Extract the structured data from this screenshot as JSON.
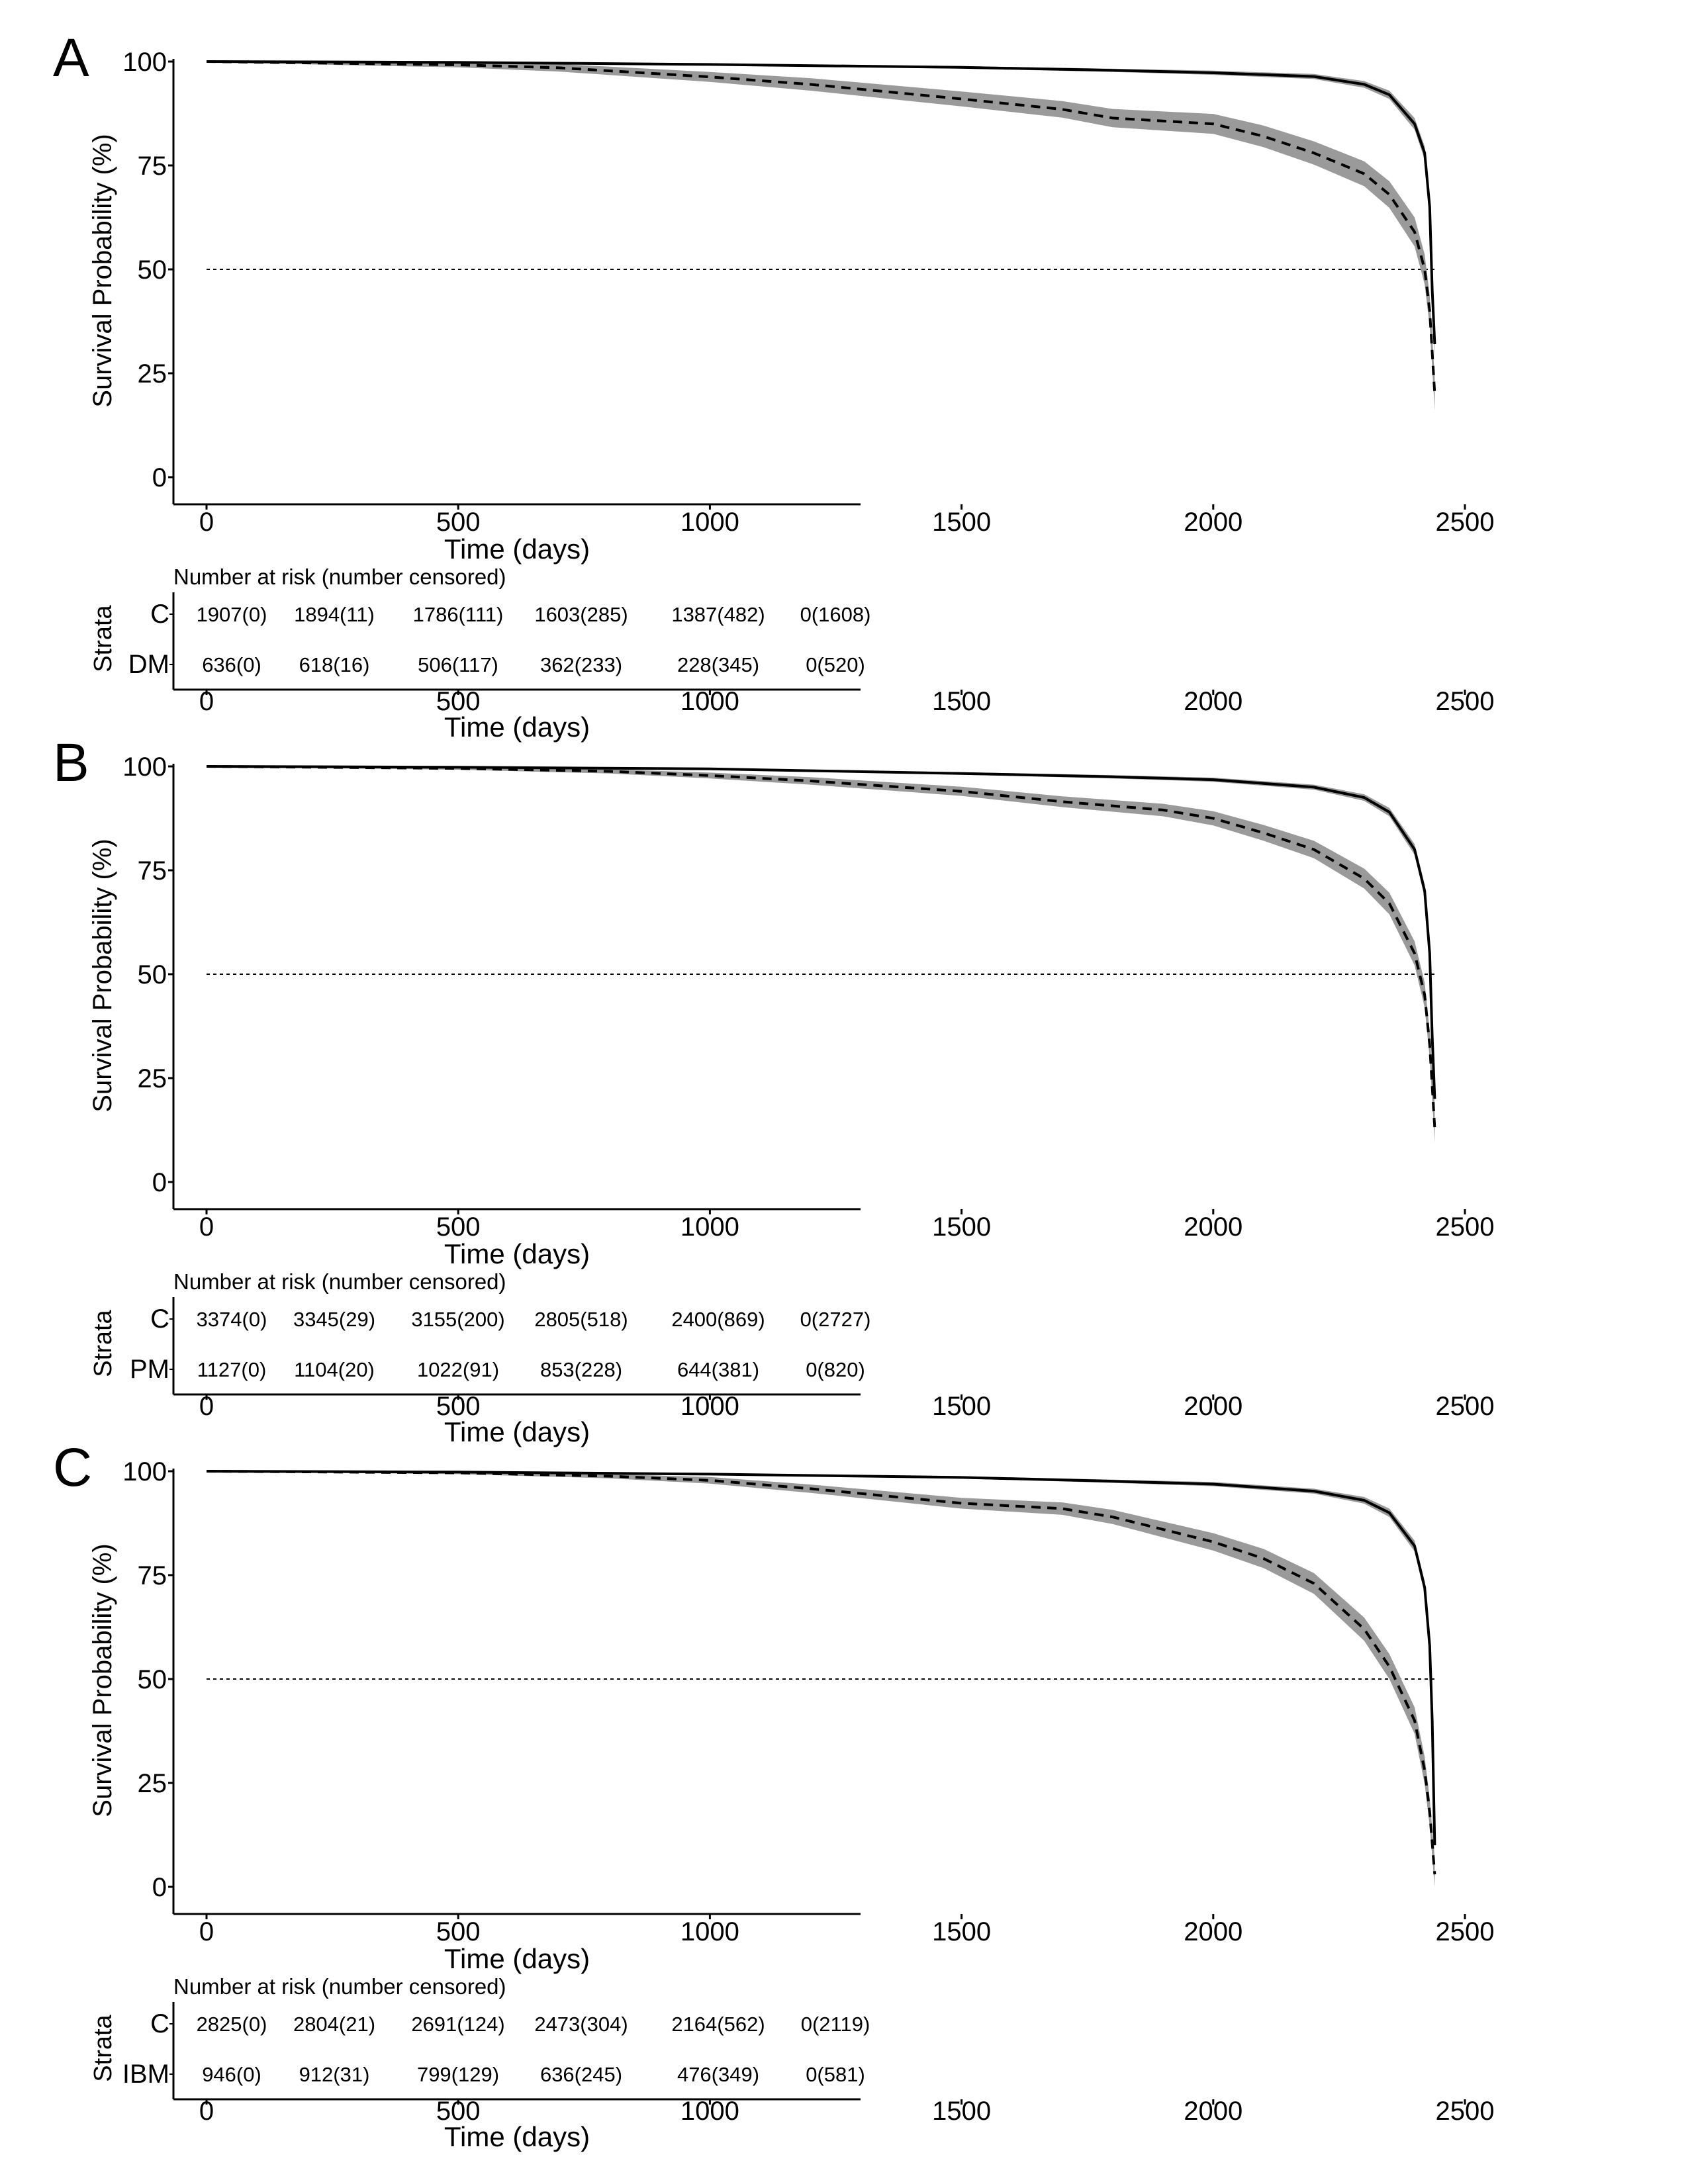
{
  "figure": {
    "panels": [
      {
        "letter": "A",
        "risk_table_title": "Number at risk (number censored)",
        "strata_label": "Strata",
        "strata": [
          "C",
          "DM"
        ],
        "risk_rows": [
          [
            "1907(0)",
            "1894(11)",
            "1786(111)",
            "1603(285)",
            "1387(482)",
            "0(1608)"
          ],
          [
            "636(0)",
            "618(16)",
            "506(117)",
            "362(233)",
            "228(345)",
            "0(520)"
          ]
        ]
      },
      {
        "letter": "B",
        "risk_table_title": "Number at risk (number censored)",
        "strata_label": "Strata",
        "strata": [
          "C",
          "PM"
        ],
        "risk_rows": [
          [
            "3374(0)",
            "3345(29)",
            "3155(200)",
            "2805(518)",
            "2400(869)",
            "0(2727)"
          ],
          [
            "1127(0)",
            "1104(20)",
            "1022(91)",
            "853(228)",
            "644(381)",
            "0(820)"
          ]
        ]
      },
      {
        "letter": "C",
        "risk_table_title": "Number at risk (number censored)",
        "strata_label": "Strata",
        "strata": [
          "C",
          "IBM"
        ],
        "risk_rows": [
          [
            "2825(0)",
            "2804(21)",
            "2691(124)",
            "2473(304)",
            "2164(562)",
            "0(2119)"
          ],
          [
            "946(0)",
            "912(31)",
            "799(129)",
            "636(245)",
            "476(349)",
            "0(581)"
          ]
        ]
      }
    ]
  },
  "chart_data": [
    {
      "type": "line",
      "title": "",
      "xlabel": "Time (days)",
      "ylabel": "Survival Probability (%)",
      "xlim": [
        -120,
        2600
      ],
      "ylim": [
        -5,
        105
      ],
      "xticks": [
        0,
        500,
        1000,
        1500,
        2000,
        2500
      ],
      "yticks": [
        0,
        25,
        50,
        75,
        100
      ],
      "reference_line_y": 50,
      "series": [
        {
          "style": "solid",
          "color": "#000000",
          "ci_color": "#9a9a9a",
          "x": [
            0,
            500,
            1000,
            1500,
            1800,
            2000,
            2200,
            2300,
            2350,
            2400,
            2420,
            2430,
            2435,
            2440
          ],
          "y": [
            100,
            99.8,
            99.3,
            98.6,
            97.9,
            97.3,
            96.4,
            94.5,
            92.0,
            85.0,
            78.0,
            65.0,
            45.0,
            32.0
          ],
          "ci_half": [
            0.1,
            0.15,
            0.2,
            0.3,
            0.4,
            0.5,
            0.6,
            0.8,
            1.0,
            1.4,
            1.6,
            2.0,
            2.5,
            3.0
          ]
        },
        {
          "style": "dashed",
          "color": "#000000",
          "ci_color": "#9a9a9a",
          "x": [
            0,
            500,
            700,
            1000,
            1200,
            1500,
            1700,
            1800,
            2000,
            2100,
            2200,
            2300,
            2350,
            2400,
            2420,
            2430,
            2440
          ],
          "y": [
            100,
            99.2,
            98.5,
            96.3,
            94.5,
            91.0,
            88.5,
            86.4,
            85.0,
            82.0,
            78.0,
            73.0,
            68.0,
            59.0,
            50.0,
            40.0,
            20.0
          ],
          "ci_half": [
            0.2,
            0.6,
            0.9,
            1.2,
            1.5,
            1.8,
            2.0,
            2.2,
            2.4,
            2.6,
            2.8,
            3.0,
            3.2,
            3.5,
            3.6,
            3.8,
            4.0
          ]
        }
      ]
    },
    {
      "type": "line",
      "title": "",
      "xlabel": "Time (days)",
      "ylabel": "Survival Probability (%)",
      "xlim": [
        -120,
        2600
      ],
      "ylim": [
        -5,
        105
      ],
      "xticks": [
        0,
        500,
        1000,
        1500,
        2000,
        2500
      ],
      "yticks": [
        0,
        25,
        50,
        75,
        100
      ],
      "reference_line_y": 50,
      "series": [
        {
          "style": "solid",
          "color": "#000000",
          "ci_color": "#9a9a9a",
          "x": [
            0,
            500,
            1000,
            1500,
            1800,
            2000,
            2200,
            2300,
            2350,
            2400,
            2420,
            2430,
            2435,
            2440
          ],
          "y": [
            100,
            99.8,
            99.4,
            98.3,
            97.5,
            96.8,
            95.0,
            92.5,
            89.0,
            80.0,
            70.0,
            55.0,
            35.0,
            20.0
          ],
          "ci_half": [
            0.1,
            0.1,
            0.2,
            0.3,
            0.4,
            0.5,
            0.6,
            0.8,
            1.0,
            1.3,
            1.6,
            2.0,
            2.5,
            3.0
          ]
        },
        {
          "style": "dashed",
          "color": "#000000",
          "ci_color": "#9a9a9a",
          "x": [
            0,
            500,
            800,
            1000,
            1200,
            1500,
            1700,
            1900,
            2000,
            2100,
            2200,
            2300,
            2350,
            2400,
            2420,
            2430,
            2440
          ],
          "y": [
            100,
            99.5,
            98.8,
            97.8,
            96.5,
            94.0,
            91.5,
            89.5,
            87.5,
            84.0,
            80.0,
            73.0,
            67.0,
            55.0,
            45.0,
            33.0,
            13.0
          ],
          "ci_half": [
            0.1,
            0.3,
            0.5,
            0.7,
            0.9,
            1.1,
            1.3,
            1.5,
            1.7,
            1.9,
            2.1,
            2.4,
            2.6,
            2.9,
            3.0,
            3.2,
            3.5
          ]
        }
      ]
    },
    {
      "type": "line",
      "title": "",
      "xlabel": "Time (days)",
      "ylabel": "Survival Probability (%)",
      "xlim": [
        -120,
        2600
      ],
      "ylim": [
        -5,
        105
      ],
      "xticks": [
        0,
        500,
        1000,
        1500,
        2000,
        2500
      ],
      "yticks": [
        0,
        25,
        50,
        75,
        100
      ],
      "reference_line_y": 50,
      "series": [
        {
          "style": "solid",
          "color": "#000000",
          "ci_color": "#9a9a9a",
          "x": [
            0,
            500,
            1000,
            1500,
            1800,
            2000,
            2200,
            2300,
            2350,
            2400,
            2420,
            2430,
            2435,
            2440
          ],
          "y": [
            100,
            99.8,
            99.3,
            98.5,
            97.6,
            96.9,
            95.2,
            93.0,
            90.0,
            82.0,
            72.0,
            58.0,
            40.0,
            10.0
          ],
          "ci_half": [
            0.1,
            0.1,
            0.2,
            0.3,
            0.4,
            0.5,
            0.6,
            0.8,
            1.0,
            1.3,
            1.6,
            2.0,
            2.5,
            3.0
          ]
        },
        {
          "style": "dashed",
          "color": "#000000",
          "ci_color": "#9a9a9a",
          "x": [
            0,
            500,
            800,
            1000,
            1200,
            1500,
            1700,
            1800,
            1900,
            2000,
            2100,
            2200,
            2300,
            2350,
            2400,
            2420,
            2430,
            2440
          ],
          "y": [
            100,
            99.6,
            98.8,
            97.8,
            95.8,
            92.3,
            91.0,
            89.0,
            86.0,
            83.0,
            79.0,
            73.0,
            62.0,
            53.0,
            40.0,
            28.0,
            18.0,
            3.0
          ],
          "ci_half": [
            0.1,
            0.3,
            0.5,
            0.8,
            1.0,
            1.3,
            1.5,
            1.7,
            1.9,
            2.1,
            2.3,
            2.5,
            2.8,
            3.0,
            3.2,
            3.3,
            3.4,
            3.5
          ]
        }
      ]
    }
  ]
}
